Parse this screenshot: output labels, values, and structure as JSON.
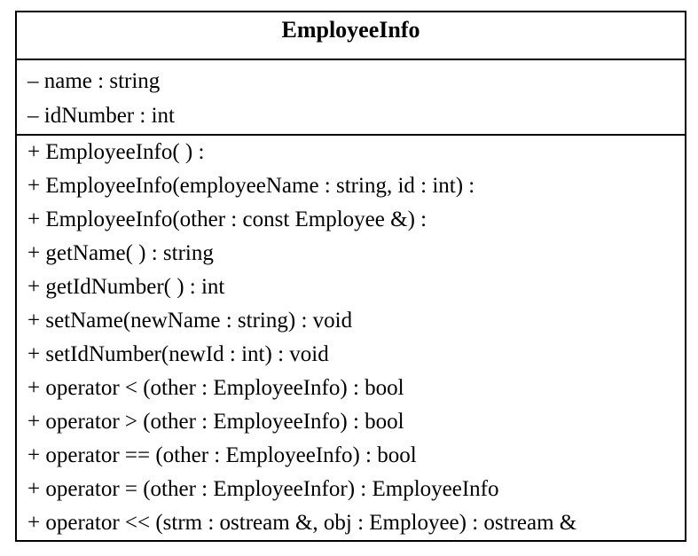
{
  "class": {
    "name": "EmployeeInfo",
    "attributes": [
      "– name : string",
      "– idNumber : int"
    ],
    "operations": [
      "+ EmployeeInfo( ) :",
      "+ EmployeeInfo(employeeName : string, id : int) :",
      "+ EmployeeInfo(other : const Employee &) :",
      "+ getName( ) : string",
      "+ getIdNumber( ) : int",
      "+ setName(newName : string) : void",
      "+ setIdNumber(newId : int) : void",
      "+ operator < (other : EmployeeInfo) : bool",
      "+ operator > (other : EmployeeInfo) : bool",
      "+ operator == (other : EmployeeInfo) : bool",
      "+ operator = (other : EmployeeInfor) : EmployeeInfo",
      "+ operator << (strm : ostream &, obj : Employee) : ostream &"
    ]
  }
}
